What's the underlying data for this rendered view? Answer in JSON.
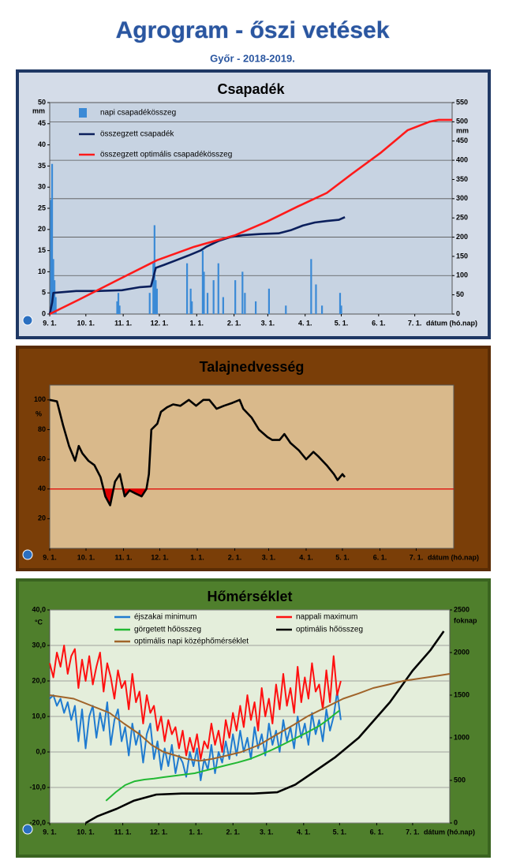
{
  "header": {
    "title": "Agrogram - őszi vetések",
    "subtitle": "Győr - 2018-2019."
  },
  "chart_data": [
    {
      "type": "combo",
      "title": "Csapadék",
      "y_unit": "mm",
      "y2_unit": "mm",
      "xlabel": "dátum (hó.nap)",
      "xlim": [
        0,
        334
      ],
      "xticks": [
        {
          "value": 0,
          "label": "9. 1."
        },
        {
          "value": 30,
          "label": "10. 1."
        },
        {
          "value": 61,
          "label": "11. 1."
        },
        {
          "value": 91,
          "label": "12. 1."
        },
        {
          "value": 122,
          "label": "1. 1."
        },
        {
          "value": 153,
          "label": "2. 1."
        },
        {
          "value": 181,
          "label": "3. 1."
        },
        {
          "value": 212,
          "label": "4. 1."
        },
        {
          "value": 242,
          "label": "5. 1."
        },
        {
          "value": 273,
          "label": "6. 1."
        },
        {
          "value": 303,
          "label": "7. 1."
        }
      ],
      "ylim": [
        0,
        50
      ],
      "yticks": [
        0,
        5,
        10,
        15,
        20,
        25,
        30,
        35,
        40,
        45,
        50
      ],
      "y2lim": [
        0,
        550
      ],
      "y2ticks": [
        0,
        50,
        100,
        150,
        200,
        250,
        300,
        350,
        400,
        450,
        500,
        550
      ],
      "y2grid": [
        100,
        200,
        300,
        400,
        500
      ],
      "series": [
        {
          "name": "napi csapadékösszeg",
          "type": "bar",
          "color": "#3b8ad6",
          "x": [
            1,
            2,
            3,
            4,
            5,
            56,
            57,
            58,
            83,
            86,
            87,
            88,
            89,
            114,
            117,
            118,
            127,
            128,
            131,
            136,
            140,
            144,
            154,
            160,
            162,
            171,
            182,
            196,
            217,
            221,
            226,
            241,
            242
          ],
          "values": [
            27,
            35.5,
            13,
            8,
            4,
            3,
            5,
            2,
            5,
            12,
            21,
            8,
            6,
            12,
            6,
            3,
            15,
            10,
            5,
            8,
            12,
            4,
            8,
            10,
            5,
            3,
            6,
            2,
            13,
            7,
            2,
            5,
            2
          ]
        },
        {
          "name": "összegzett csapadék",
          "type": "line",
          "axis": "y2",
          "color": "#0b1f5c",
          "x": [
            0,
            2,
            3,
            22,
            40,
            60,
            75,
            84,
            86,
            88,
            95,
            105,
            115,
            125,
            130,
            140,
            150,
            160,
            175,
            190,
            200,
            210,
            220,
            230,
            240,
            245
          ],
          "values": [
            0,
            30,
            55,
            60,
            60,
            62,
            70,
            72,
            95,
            120,
            128,
            140,
            152,
            165,
            175,
            190,
            200,
            205,
            208,
            210,
            218,
            230,
            238,
            242,
            245,
            252
          ]
        },
        {
          "name": "összegzett optimális csapadékösszeg",
          "type": "line",
          "axis": "y2",
          "color": "#ff1a1a",
          "x": [
            0,
            24,
            56,
            89,
            120,
            154,
            180,
            206,
            230,
            251,
            275,
            297,
            315,
            323,
            334
          ],
          "values": [
            0,
            37,
            88,
            140,
            175,
            205,
            240,
            280,
            315,
            365,
            420,
            478,
            500,
            505,
            505
          ]
        }
      ]
    },
    {
      "type": "line",
      "title": "Talajnedvesség",
      "y_unit": "%",
      "xlabel": "dátum (hó.nap)",
      "xlim": [
        0,
        334
      ],
      "xticks": [
        {
          "value": 0,
          "label": "9. 1."
        },
        {
          "value": 30,
          "label": "10. 1."
        },
        {
          "value": 61,
          "label": "11. 1."
        },
        {
          "value": 91,
          "label": "12. 1."
        },
        {
          "value": 122,
          "label": "1. 1."
        },
        {
          "value": 153,
          "label": "2. 1."
        },
        {
          "value": 181,
          "label": "3. 1."
        },
        {
          "value": 212,
          "label": "4. 1."
        },
        {
          "value": 242,
          "label": "5. 1."
        },
        {
          "value": 273,
          "label": "6. 1."
        },
        {
          "value": 303,
          "label": "7. 1."
        }
      ],
      "ylim": [
        0,
        110
      ],
      "yticks": [
        20,
        40,
        60,
        80,
        100
      ],
      "threshold": 40,
      "threshold_color": "#e00000",
      "series": [
        {
          "type": "line",
          "color": "#000000",
          "x": [
            0,
            6,
            11,
            16,
            21,
            24,
            27,
            32,
            37,
            42,
            46,
            50,
            54,
            58,
            62,
            66,
            71,
            76,
            80,
            82,
            84,
            89,
            92,
            97,
            102,
            108,
            115,
            121,
            127,
            132,
            138,
            144,
            151,
            157,
            160,
            167,
            173,
            180,
            184,
            190,
            194,
            199,
            206,
            212,
            218,
            222,
            229,
            235,
            238,
            242,
            244
          ],
          "values": [
            100,
            99,
            83,
            69,
            59,
            69,
            64,
            59,
            56,
            48,
            35,
            29,
            45,
            50,
            35,
            39,
            37,
            35,
            40,
            50,
            80,
            84,
            92,
            95,
            97,
            96,
            100,
            96,
            100,
            100,
            94,
            96,
            98,
            100,
            94,
            88,
            80,
            75,
            73,
            73,
            77,
            71,
            66,
            60,
            65,
            62,
            56,
            50,
            46,
            50,
            48
          ]
        }
      ]
    },
    {
      "type": "line",
      "title": "Hőmérséklet",
      "y_unit": "°C",
      "y2_unit": "foknap",
      "xlabel": "dátum (hó.nap)",
      "xlim": [
        0,
        334
      ],
      "xticks": [
        {
          "value": 0,
          "label": "9. 1."
        },
        {
          "value": 30,
          "label": "10. 1."
        },
        {
          "value": 61,
          "label": "11. 1."
        },
        {
          "value": 91,
          "label": "12. 1."
        },
        {
          "value": 122,
          "label": "1. 1."
        },
        {
          "value": 153,
          "label": "2. 1."
        },
        {
          "value": 181,
          "label": "3. 1."
        },
        {
          "value": 212,
          "label": "4. 1."
        },
        {
          "value": 242,
          "label": "5. 1."
        },
        {
          "value": 273,
          "label": "6. 1."
        },
        {
          "value": 303,
          "label": "7. 1."
        }
      ],
      "ylim": [
        -20,
        40
      ],
      "yticks": [
        {
          "value": -20,
          "label": "-20,0"
        },
        {
          "value": -10,
          "label": "-10,0"
        },
        {
          "value": 0,
          "label": "0,0"
        },
        {
          "value": 10,
          "label": "10,0"
        },
        {
          "value": 20,
          "label": "20,0"
        },
        {
          "value": 30,
          "label": "30,0"
        },
        {
          "value": 40,
          "label": "40,0"
        }
      ],
      "y2lim": [
        0,
        2500
      ],
      "y2ticks": [
        0,
        500,
        1000,
        1500,
        2000,
        2500
      ],
      "grid": true,
      "series": [
        {
          "name": "éjszakai minimum",
          "type": "line",
          "color": "#1f7bd0",
          "x": [
            0,
            3,
            6,
            9,
            12,
            15,
            18,
            21,
            24,
            27,
            30,
            33,
            36,
            39,
            42,
            45,
            48,
            51,
            54,
            57,
            60,
            63,
            66,
            69,
            72,
            75,
            78,
            81,
            84,
            87,
            90,
            93,
            96,
            99,
            102,
            105,
            108,
            111,
            114,
            117,
            120,
            123,
            126,
            129,
            132,
            135,
            138,
            141,
            144,
            147,
            150,
            153,
            156,
            159,
            162,
            165,
            168,
            171,
            174,
            177,
            180,
            183,
            186,
            189,
            192,
            195,
            198,
            201,
            204,
            207,
            210,
            213,
            216,
            219,
            222,
            225,
            228,
            231,
            234,
            237,
            240,
            243
          ],
          "values": [
            15,
            16,
            13,
            15,
            11,
            14,
            9,
            13,
            3,
            12,
            1,
            10,
            13,
            4,
            11,
            6,
            14,
            2,
            9,
            12,
            3,
            7,
            -1,
            8,
            2,
            6,
            -3,
            5,
            8,
            -2,
            3,
            -5,
            1,
            -4,
            2,
            -6,
            -1,
            -3,
            -7,
            0,
            -4,
            1,
            -8,
            -2,
            -5,
            2,
            -6,
            0,
            -3,
            3,
            -2,
            5,
            -1,
            6,
            0,
            4,
            -2,
            7,
            1,
            5,
            -1,
            8,
            2,
            6,
            0,
            9,
            3,
            7,
            1,
            10,
            4,
            8,
            2,
            11,
            5,
            9,
            3,
            12,
            6,
            10,
            17,
            9
          ]
        },
        {
          "name": "nappali maximum",
          "type": "line",
          "color": "#ff1010",
          "x": [
            0,
            3,
            6,
            9,
            12,
            15,
            18,
            21,
            24,
            27,
            30,
            33,
            36,
            39,
            42,
            45,
            48,
            51,
            54,
            57,
            60,
            63,
            66,
            69,
            72,
            75,
            78,
            81,
            84,
            87,
            90,
            93,
            96,
            99,
            102,
            105,
            108,
            111,
            114,
            117,
            120,
            123,
            126,
            129,
            132,
            135,
            138,
            141,
            144,
            147,
            150,
            153,
            156,
            159,
            162,
            165,
            168,
            171,
            174,
            177,
            180,
            183,
            186,
            189,
            192,
            195,
            198,
            201,
            204,
            207,
            210,
            213,
            216,
            219,
            222,
            225,
            228,
            231,
            234,
            237,
            240,
            243
          ],
          "values": [
            25,
            21,
            28,
            24,
            30,
            22,
            27,
            29,
            18,
            26,
            20,
            27,
            19,
            24,
            28,
            17,
            25,
            21,
            15,
            23,
            18,
            20,
            12,
            22,
            14,
            17,
            8,
            16,
            11,
            13,
            6,
            10,
            3,
            9,
            5,
            7,
            1,
            6,
            -1,
            4,
            0,
            5,
            -2,
            3,
            1,
            8,
            2,
            6,
            0,
            9,
            4,
            11,
            6,
            13,
            7,
            16,
            9,
            14,
            6,
            18,
            10,
            15,
            8,
            19,
            12,
            22,
            13,
            18,
            11,
            24,
            14,
            21,
            15,
            25,
            17,
            19,
            12,
            23,
            14,
            27,
            16,
            20
          ]
        },
        {
          "name": "görgetett hőösszeg",
          "type": "line",
          "axis": "y2",
          "color": "#22b833",
          "x": [
            47,
            55,
            63,
            71,
            79,
            87,
            95,
            108,
            121,
            134,
            147,
            157,
            167,
            176,
            186,
            196,
            206,
            216,
            225,
            232,
            238,
            242
          ],
          "values": [
            260,
            360,
            444,
            490,
            509,
            520,
            537,
            560,
            583,
            630,
            676,
            710,
            750,
            800,
            861,
            930,
            1000,
            1070,
            1139,
            1210,
            1278,
            1320
          ]
        },
        {
          "name": "optimális hőösszeg",
          "type": "line",
          "axis": "y2",
          "color": "#000000",
          "x": [
            30,
            40,
            56,
            70,
            89,
            110,
            130,
            150,
            170,
            190,
            205,
            219,
            238,
            258,
            284,
            303,
            318,
            329
          ],
          "values": [
            0,
            80,
            167,
            260,
            333,
            345,
            345,
            345,
            345,
            360,
            450,
            583,
            768,
            1000,
            1417,
            1787,
            2030,
            2250
          ]
        },
        {
          "name": "optimális napi középhőmérséklet",
          "type": "line",
          "color": "#a0642a",
          "x": [
            0,
            20,
            35,
            50,
            62,
            75,
            85,
            95,
            105,
            115,
            125,
            135,
            148,
            160,
            175,
            190,
            203,
            215,
            230,
            245,
            258,
            270,
            283,
            295,
            305,
            315,
            334
          ],
          "values": [
            16,
            15,
            13,
            11,
            8,
            5,
            2,
            0,
            -1,
            -2,
            -2.5,
            -2,
            -1,
            0,
            2,
            5,
            7.5,
            10,
            12.5,
            15,
            16.5,
            18,
            19,
            20,
            20.5,
            21,
            22
          ]
        }
      ]
    }
  ]
}
